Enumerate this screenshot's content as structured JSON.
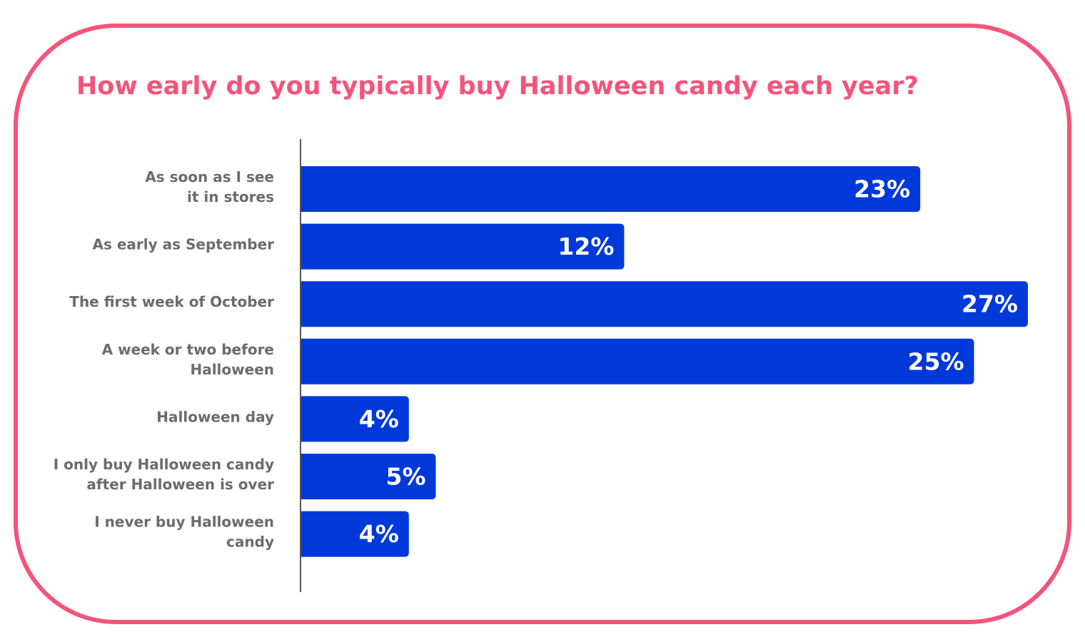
{
  "chart_data": {
    "type": "bar",
    "orientation": "horizontal",
    "title": "How early do you typically buy Halloween candy each year?",
    "categories": [
      "As soon as I see\nit in stores",
      "As early as September",
      "The first week of October",
      "A week or two before\nHalloween",
      "Halloween day",
      "I only buy Halloween candy\nafter Halloween is over",
      "I never buy Halloween\ncandy"
    ],
    "values": [
      23,
      12,
      27,
      25,
      4,
      5,
      4
    ],
    "value_labels": [
      "23%",
      "12%",
      "27%",
      "25%",
      "4%",
      "5%",
      "4%"
    ],
    "color": "#0039d9"
  }
}
